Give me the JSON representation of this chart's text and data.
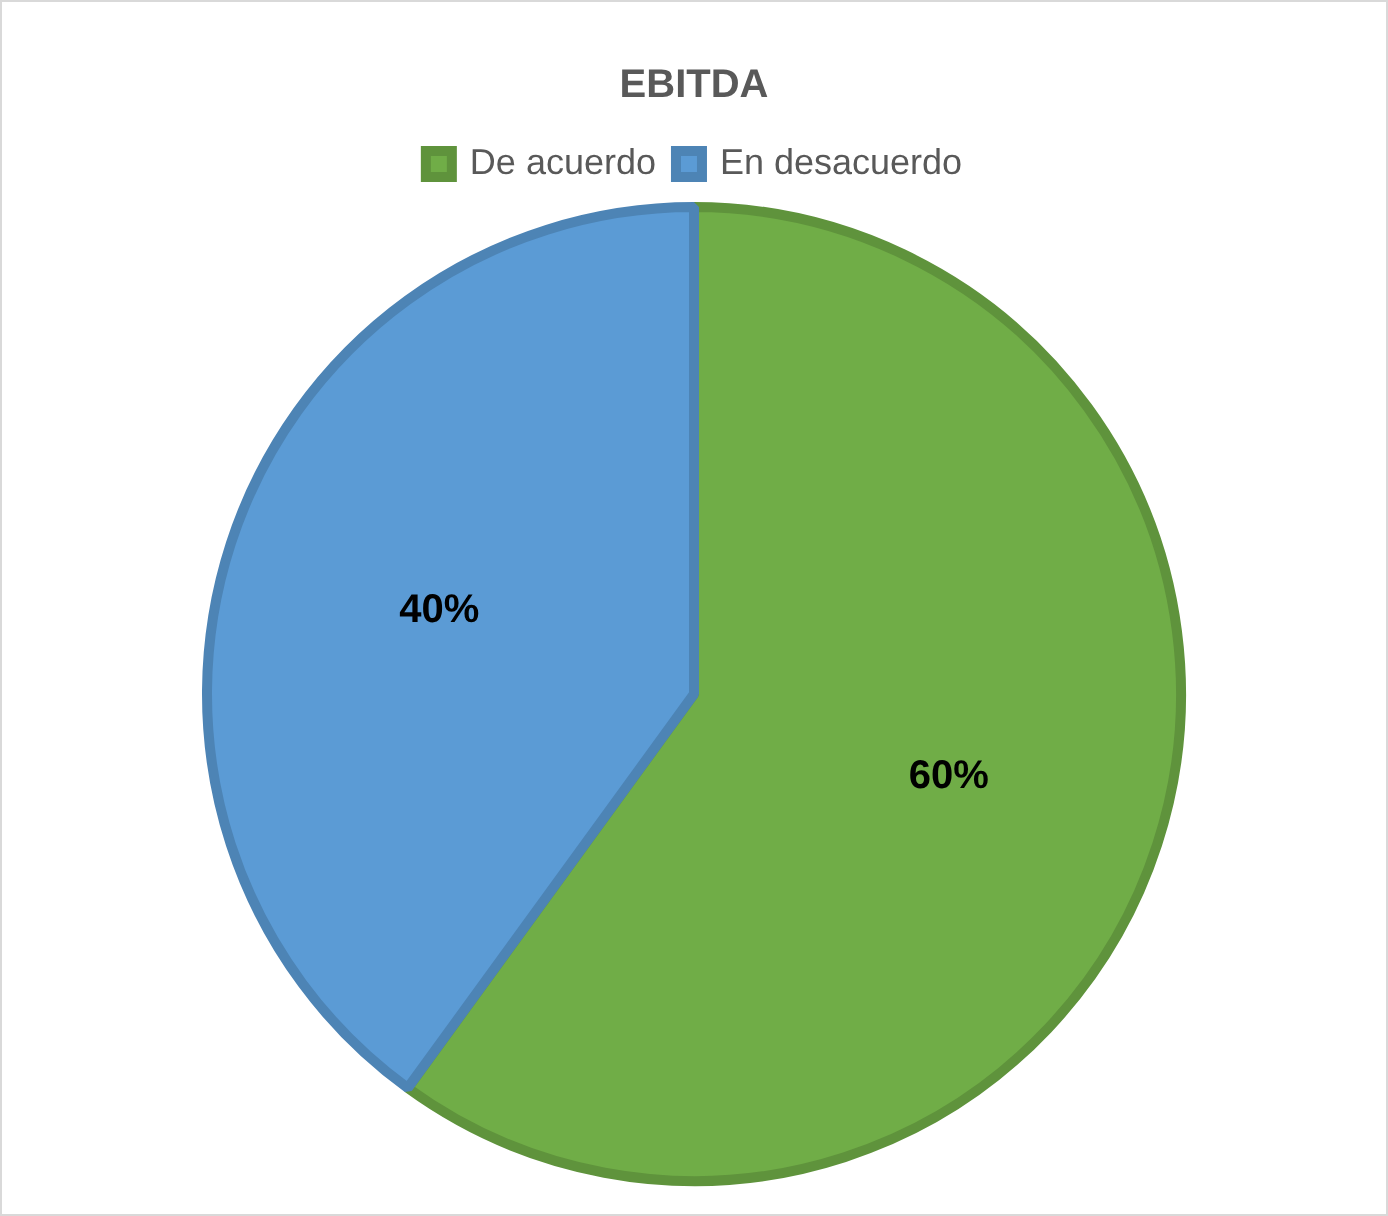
{
  "chart_data": {
    "type": "pie",
    "title": "EBITDA",
    "categories": [
      "De acuerdo",
      "En desacuerdo"
    ],
    "values": [
      60,
      40
    ],
    "colors": [
      "#70ad47",
      "#5b9bd5"
    ],
    "legend": "top",
    "value_labels": [
      "60%",
      "40%"
    ]
  }
}
